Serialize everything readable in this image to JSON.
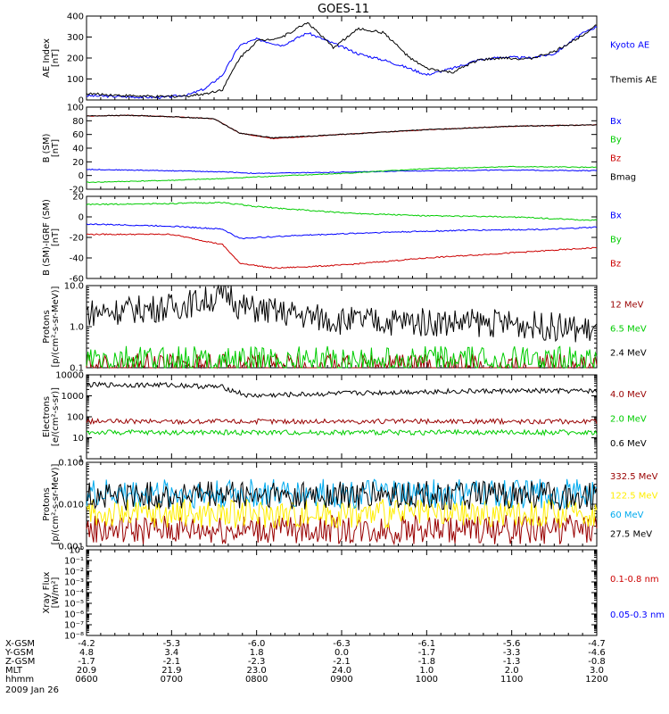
{
  "chart_data": {
    "title": "GOES-11",
    "date_label": "2009 Jan 26",
    "x_ticks": [
      "0600",
      "0700",
      "0800",
      "0900",
      "1000",
      "1100",
      "1200"
    ],
    "footer_rows": [
      {
        "label": "X-GSM",
        "values": [
          "-4.2",
          "-5.3",
          "-6.0",
          "-6.3",
          "-6.1",
          "-5.6",
          "-4.7"
        ]
      },
      {
        "label": "Y-GSM",
        "values": [
          "4.8",
          "3.4",
          "1.8",
          "0.0",
          "-1.7",
          "-3.3",
          "-4.6"
        ]
      },
      {
        "label": "Z-GSM",
        "values": [
          "-1.7",
          "-2.1",
          "-2.3",
          "-2.1",
          "-1.8",
          "-1.3",
          "-0.8"
        ]
      },
      {
        "label": "MLT",
        "values": [
          "20.9",
          "21.9",
          "23.0",
          "24.0",
          "1.0",
          "2.0",
          "3.0"
        ]
      },
      {
        "label": "hhmm",
        "values": [
          "0600",
          "0700",
          "0800",
          "0900",
          "1000",
          "1100",
          "1200"
        ]
      }
    ],
    "panels": [
      {
        "type": "line",
        "ylabel": [
          "AE Index",
          "[nT]"
        ],
        "ylim": [
          0,
          400
        ],
        "log": false,
        "yticks": [
          0,
          100,
          200,
          300,
          400
        ],
        "ytick_labels": [
          "0",
          "100",
          "200",
          "300",
          "400"
        ],
        "series": [
          {
            "name": "Kyoto AE",
            "color": "#0000ff",
            "x": [
              6.0,
              6.5,
              6.9,
              7.2,
              7.4,
              7.6,
              7.8,
              8.0,
              8.3,
              8.6,
              8.9,
              9.2,
              9.5,
              9.8,
              10.0,
              10.3,
              10.6,
              10.9,
              11.2,
              11.5,
              11.8,
              12.0
            ],
            "y": [
              20,
              15,
              12,
              25,
              55,
              120,
              260,
              290,
              260,
              320,
              270,
              220,
              190,
              150,
              120,
              150,
              190,
              205,
              200,
              220,
              310,
              350
            ]
          },
          {
            "name": "Themis AE",
            "color": "#000000",
            "x": [
              6.0,
              6.5,
              6.9,
              7.2,
              7.4,
              7.6,
              7.8,
              8.0,
              8.3,
              8.6,
              8.9,
              9.2,
              9.5,
              9.8,
              10.0,
              10.3,
              10.6,
              10.9,
              11.2,
              11.5,
              11.8,
              12.0
            ],
            "y": [
              30,
              20,
              15,
              20,
              30,
              50,
              200,
              280,
              300,
              370,
              250,
              340,
              320,
              200,
              150,
              130,
              190,
              200,
              195,
              230,
              300,
              360
            ]
          }
        ]
      },
      {
        "type": "line",
        "ylabel": [
          "B (SM)",
          "[nT]"
        ],
        "ylim": [
          -20,
          100
        ],
        "log": false,
        "yticks": [
          -20,
          0,
          20,
          40,
          60,
          80,
          100
        ],
        "ytick_labels": [
          "-20",
          "0",
          "20",
          "40",
          "60",
          "80",
          "100"
        ],
        "series": [
          {
            "name": "Bx",
            "color": "#0000ff",
            "x": [
              6.0,
              7.0,
              7.7,
              8.0,
              9.0,
              10.0,
              11.0,
              12.0
            ],
            "y": [
              9,
              7,
              5,
              3,
              5,
              7,
              8,
              7
            ]
          },
          {
            "name": "By",
            "color": "#00cc00",
            "x": [
              6.0,
              7.0,
              7.7,
              8.0,
              9.0,
              10.0,
              11.0,
              12.0
            ],
            "y": [
              -10,
              -7,
              -4,
              -2,
              3,
              10,
              13,
              12
            ]
          },
          {
            "name": "Bz",
            "color": "#cc0000",
            "x": [
              6.0,
              6.5,
              7.0,
              7.5,
              7.8,
              8.2,
              9.0,
              10.0,
              11.0,
              12.0
            ],
            "y": [
              87,
              88,
              86,
              83,
              62,
              54,
              60,
              67,
              72,
              74
            ]
          },
          {
            "name": "Bmag",
            "color": "#000000",
            "x": [
              6.0,
              6.5,
              7.0,
              7.5,
              7.8,
              8.2,
              9.0,
              10.0,
              11.0,
              12.0
            ],
            "y": [
              87,
              88,
              86,
              83,
              62,
              55,
              60,
              67,
              72,
              74
            ]
          }
        ]
      },
      {
        "type": "line",
        "ylabel": [
          "B (SM)-IGRF (SM)",
          "[nT]"
        ],
        "ylim": [
          -60,
          20
        ],
        "log": false,
        "yticks": [
          -60,
          -40,
          -20,
          0,
          20
        ],
        "ytick_labels": [
          "-60",
          "-40",
          "-20",
          "0",
          "20"
        ],
        "series": [
          {
            "name": "Bx",
            "color": "#0000ff",
            "x": [
              6.0,
              7.0,
              7.6,
              7.8,
              8.5,
              9.5,
              10.5,
              11.5,
              12.0
            ],
            "y": [
              -7,
              -9,
              -12,
              -21,
              -18,
              -15,
              -13,
              -12,
              -10
            ]
          },
          {
            "name": "By",
            "color": "#00cc00",
            "x": [
              6.0,
              7.0,
              7.6,
              8.0,
              9.0,
              10.0,
              11.0,
              11.8,
              12.0
            ],
            "y": [
              12,
              13,
              14,
              10,
              4,
              1,
              0,
              -3,
              -3
            ]
          },
          {
            "name": "Bz",
            "color": "#cc0000",
            "x": [
              6.0,
              7.0,
              7.6,
              7.8,
              8.2,
              9.0,
              10.0,
              11.0,
              12.0
            ],
            "y": [
              -17,
              -17,
              -27,
              -45,
              -50,
              -47,
              -40,
              -35,
              -30
            ]
          }
        ]
      },
      {
        "type": "line",
        "ylabel": [
          "Protons",
          "[p/(cm²-s-sr-MeV)]"
        ],
        "ylim": [
          0.1,
          10
        ],
        "log": true,
        "yticks": [
          0.1,
          1,
          10
        ],
        "ytick_labels": [
          "0.1",
          "1.0",
          "10.0"
        ],
        "series": [
          {
            "name": "12 MeV",
            "color": "#990000",
            "x": [
              6.0,
              12.0
            ],
            "y": [
              0.1,
              0.1
            ]
          },
          {
            "name": "6.5 MeV",
            "color": "#00cc00",
            "x": [
              6.0,
              12.0
            ],
            "y": [
              0.15,
              0.15
            ]
          },
          {
            "name": "2.4 MeV",
            "color": "#000000",
            "x": [
              6.0,
              7.0,
              7.7,
              7.8,
              9.0,
              10.0,
              11.0,
              12.0
            ],
            "y": [
              2.2,
              3.0,
              6.0,
              3.0,
              1.4,
              1.3,
              1.2,
              0.8
            ]
          }
        ]
      },
      {
        "type": "line",
        "ylabel": [
          "Electrons",
          "[e/(cm²-s-sr)]"
        ],
        "ylim": [
          1,
          10000
        ],
        "log": true,
        "yticks": [
          1,
          10,
          100,
          1000,
          10000
        ],
        "ytick_labels": [
          "1",
          "10",
          "100",
          "1000",
          "10000"
        ],
        "series": [
          {
            "name": "4.0 MeV",
            "color": "#990000",
            "x": [
              6.0,
              12.0
            ],
            "y": [
              60,
              60
            ]
          },
          {
            "name": "2.0 MeV",
            "color": "#00cc00",
            "x": [
              6.0,
              12.0
            ],
            "y": [
              18,
              18
            ]
          },
          {
            "name": "0.6 MeV",
            "color": "#000000",
            "x": [
              6.0,
              7.0,
              7.6,
              7.9,
              9.0,
              10.0,
              11.0,
              12.0
            ],
            "y": [
              3300,
              3300,
              2600,
              1000,
              1300,
              1600,
              1700,
              1700
            ]
          }
        ]
      },
      {
        "type": "line",
        "ylabel": [
          "Protons",
          "[p/(cm²-s-sr-MeV)]"
        ],
        "ylim": [
          0.001,
          0.1
        ],
        "log": true,
        "yticks": [
          0.001,
          0.01,
          0.1
        ],
        "ytick_labels": [
          "0.001",
          "0.010",
          "0.100"
        ],
        "series": [
          {
            "name": "332.5 MeV",
            "color": "#990000",
            "x": [
              6.0,
              12.0
            ],
            "y": [
              0.0025,
              0.0025
            ]
          },
          {
            "name": "122.5 MeV",
            "color": "#ffee00",
            "x": [
              6.0,
              12.0
            ],
            "y": [
              0.006,
              0.006
            ]
          },
          {
            "name": "60 MeV",
            "color": "#00aaee",
            "x": [
              6.0,
              12.0
            ],
            "y": [
              0.018,
              0.018
            ]
          },
          {
            "name": "27.5 MeV",
            "color": "#000000",
            "x": [
              6.0,
              12.0
            ],
            "y": [
              0.016,
              0.016
            ]
          }
        ]
      },
      {
        "type": "line",
        "ylabel": [
          "Xray Flux",
          "[W/m²]"
        ],
        "ylim": [
          1e-08,
          1
        ],
        "log": true,
        "yticks": [
          1e-08,
          1e-07,
          1e-06,
          1e-05,
          0.0001,
          0.001,
          0.01,
          0.1,
          1
        ],
        "ytick_labels": [
          "10⁻⁸",
          "10⁻⁷",
          "10⁻⁶",
          "10⁻⁵",
          "10⁻⁴",
          "10⁻³",
          "10⁻²",
          "10⁻¹",
          "10⁰"
        ],
        "series": [
          {
            "name": "0.1-0.8 nm",
            "color": "#cc0000",
            "x": [],
            "y": []
          },
          {
            "name": "0.05-0.3 nm",
            "color": "#0000ff",
            "x": [],
            "y": []
          }
        ]
      }
    ]
  }
}
